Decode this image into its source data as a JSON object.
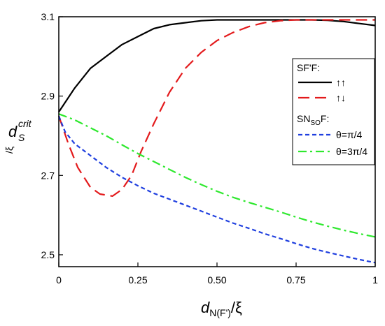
{
  "chart_data": {
    "type": "line",
    "xlabel": {
      "main": "d",
      "sub": "N(F')",
      "tail": "/ξ"
    },
    "ylabel": {
      "main": "d",
      "sub": "S",
      "sup": "crit",
      "tail": "/ξ"
    },
    "xlim": [
      0,
      1
    ],
    "ylim": [
      2.47,
      3.1
    ],
    "x_ticks": [
      0,
      0.25,
      0.5,
      0.75,
      1
    ],
    "x_tick_labels": [
      "0",
      "0.25",
      "0.50",
      "0.75",
      "1"
    ],
    "y_ticks": [
      2.5,
      2.7,
      2.9,
      3.1
    ],
    "y_tick_labels": [
      "2.5",
      "2.7",
      "2.9",
      "3.1"
    ],
    "grid": false,
    "legend": {
      "placement": "right",
      "groups": [
        {
          "heading": {
            "main": "SF'F:"
          },
          "series_index": [
            0,
            1
          ]
        },
        {
          "heading": {
            "main": "SN",
            "sub": "SO",
            "tail": "F:"
          },
          "series_index": [
            2,
            3
          ]
        }
      ]
    },
    "series": [
      {
        "name": "↑↑",
        "color": "#000000",
        "dash": "solid",
        "x": [
          0,
          0.05,
          0.1,
          0.15,
          0.2,
          0.25,
          0.3,
          0.35,
          0.4,
          0.45,
          0.5,
          0.55,
          0.6,
          0.65,
          0.7,
          0.75,
          0.8,
          0.85,
          0.9,
          0.95,
          1.0
        ],
        "y": [
          2.86,
          2.92,
          2.97,
          3.0,
          3.03,
          3.05,
          3.07,
          3.08,
          3.085,
          3.09,
          3.092,
          3.092,
          3.092,
          3.092,
          3.092,
          3.092,
          3.092,
          3.091,
          3.088,
          3.083,
          3.078
        ]
      },
      {
        "name": "↑↓",
        "color": "#e31a1c",
        "dash": "long",
        "x": [
          0,
          0.03,
          0.06,
          0.1,
          0.13,
          0.17,
          0.2,
          0.23,
          0.26,
          0.3,
          0.35,
          0.4,
          0.45,
          0.5,
          0.55,
          0.6,
          0.65,
          0.7,
          0.75,
          0.8,
          0.85,
          0.9,
          0.95,
          1.0
        ],
        "y": [
          2.85,
          2.78,
          2.72,
          2.67,
          2.653,
          2.648,
          2.665,
          2.7,
          2.76,
          2.83,
          2.91,
          2.97,
          3.01,
          3.04,
          3.06,
          3.075,
          3.085,
          3.09,
          3.092,
          3.092,
          3.092,
          3.092,
          3.092,
          3.092
        ]
      },
      {
        "name": "θ=π/4",
        "color": "#1f3fdf",
        "dash": "short",
        "x": [
          0,
          0.02,
          0.05,
          0.1,
          0.15,
          0.2,
          0.25,
          0.3,
          0.35,
          0.4,
          0.45,
          0.5,
          0.55,
          0.6,
          0.65,
          0.7,
          0.75,
          0.8,
          0.85,
          0.9,
          0.95,
          1.0
        ],
        "y": [
          2.85,
          2.81,
          2.78,
          2.75,
          2.72,
          2.695,
          2.674,
          2.655,
          2.64,
          2.625,
          2.61,
          2.595,
          2.58,
          2.567,
          2.553,
          2.541,
          2.528,
          2.516,
          2.506,
          2.497,
          2.488,
          2.48
        ]
      },
      {
        "name": "θ=3π/4",
        "color": "#2ee82e",
        "dash": "dashdot",
        "x": [
          0,
          0.05,
          0.1,
          0.15,
          0.2,
          0.25,
          0.3,
          0.35,
          0.4,
          0.45,
          0.5,
          0.55,
          0.6,
          0.65,
          0.7,
          0.75,
          0.8,
          0.85,
          0.9,
          0.95,
          1.0
        ],
        "y": [
          2.855,
          2.84,
          2.82,
          2.8,
          2.777,
          2.755,
          2.735,
          2.715,
          2.695,
          2.677,
          2.66,
          2.645,
          2.632,
          2.62,
          2.608,
          2.595,
          2.583,
          2.572,
          2.562,
          2.553,
          2.545
        ]
      }
    ]
  }
}
